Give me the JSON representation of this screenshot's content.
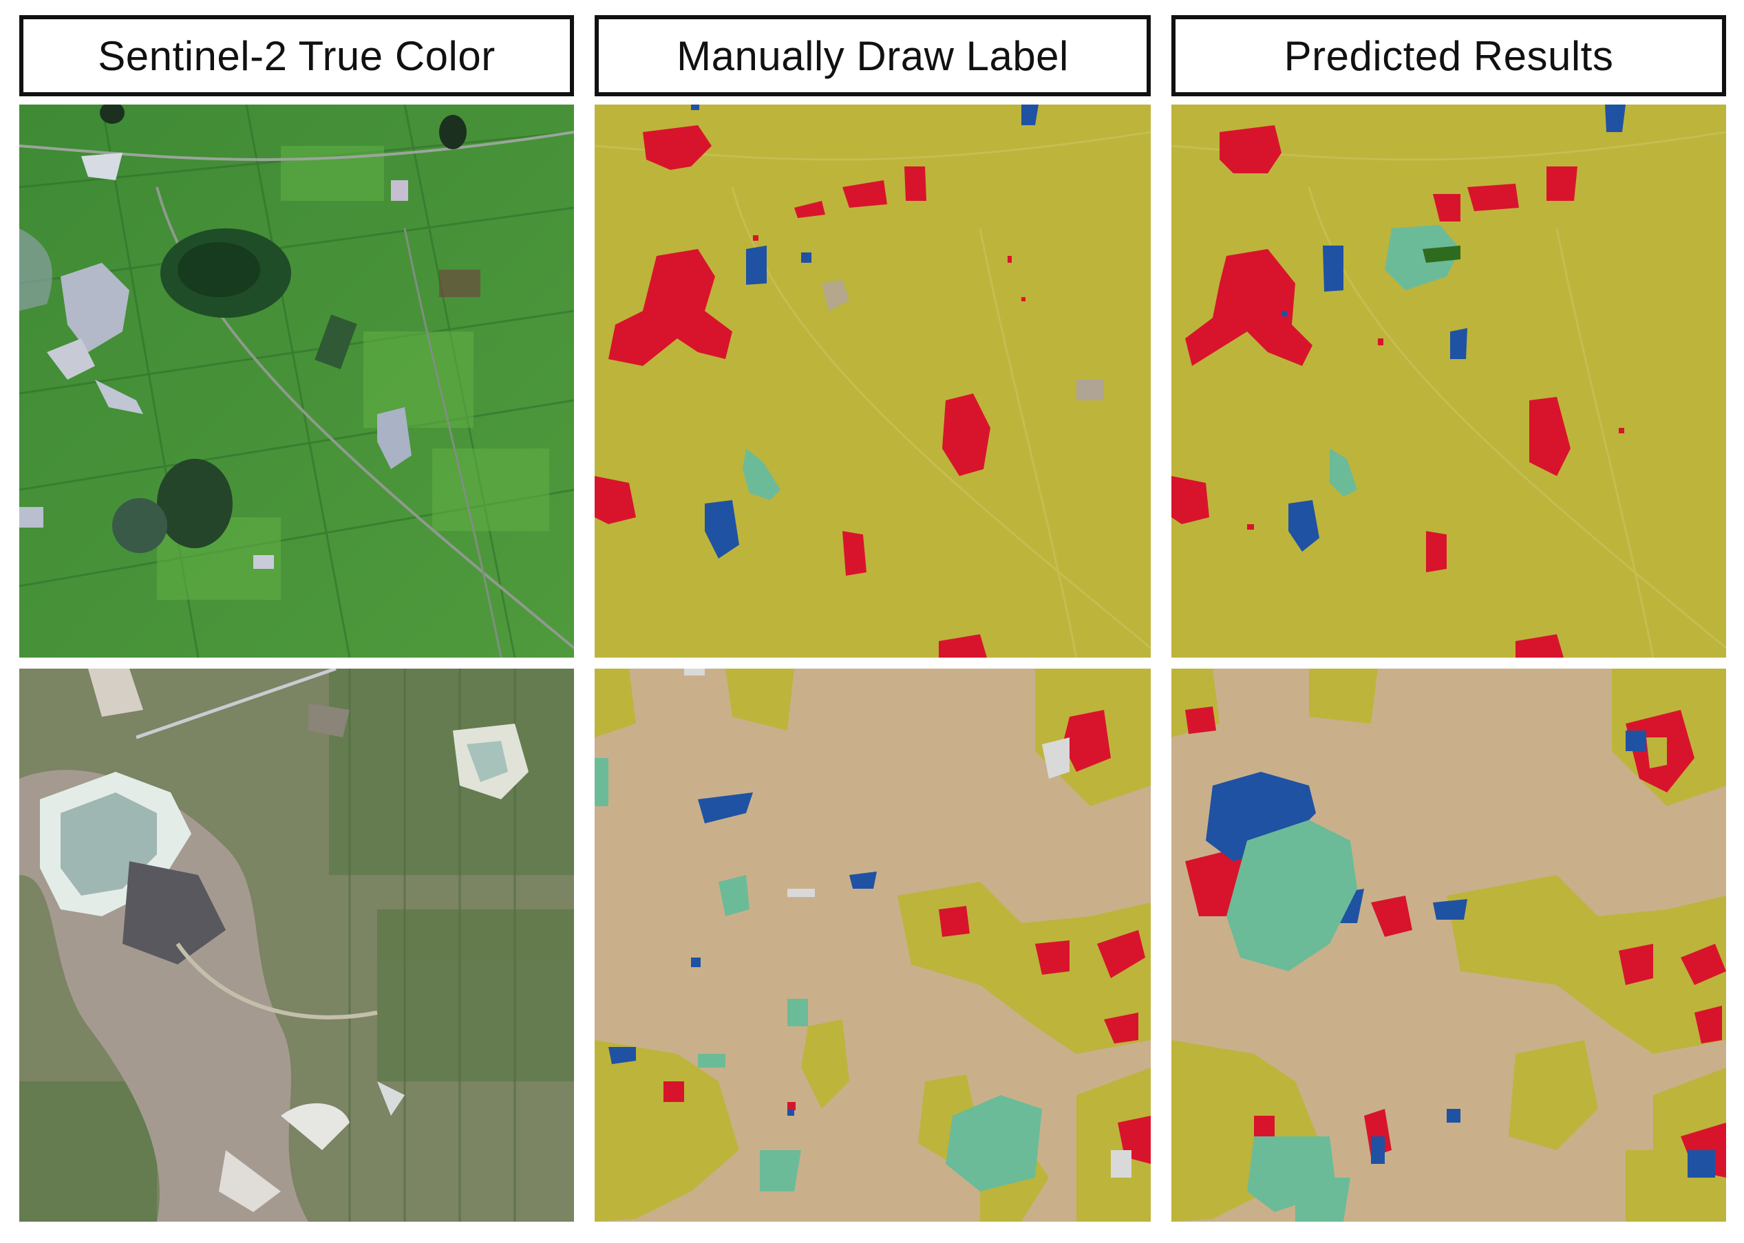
{
  "headers": {
    "col1": "Sentinel-2 True Color",
    "col2": "Manually Draw Label",
    "col3": "Predicted Results"
  },
  "colors": {
    "cropland": "#bdb43c",
    "barren": "#c9b08b",
    "built_up": "#d8142c",
    "water": "#1f52a3",
    "grassland": "#6bbb98",
    "forest": "#2f6b1f",
    "veg_green": "#4c9e3b",
    "ground_beige": "#c8baa4"
  },
  "panels": [
    {
      "row": 1,
      "col": 1,
      "kind": "satellite-green"
    },
    {
      "row": 1,
      "col": 2,
      "kind": "label-map-1"
    },
    {
      "row": 1,
      "col": 3,
      "kind": "prediction-map-1"
    },
    {
      "row": 2,
      "col": 1,
      "kind": "satellite-urban"
    },
    {
      "row": 2,
      "col": 2,
      "kind": "label-map-2"
    },
    {
      "row": 2,
      "col": 3,
      "kind": "prediction-map-2"
    }
  ]
}
